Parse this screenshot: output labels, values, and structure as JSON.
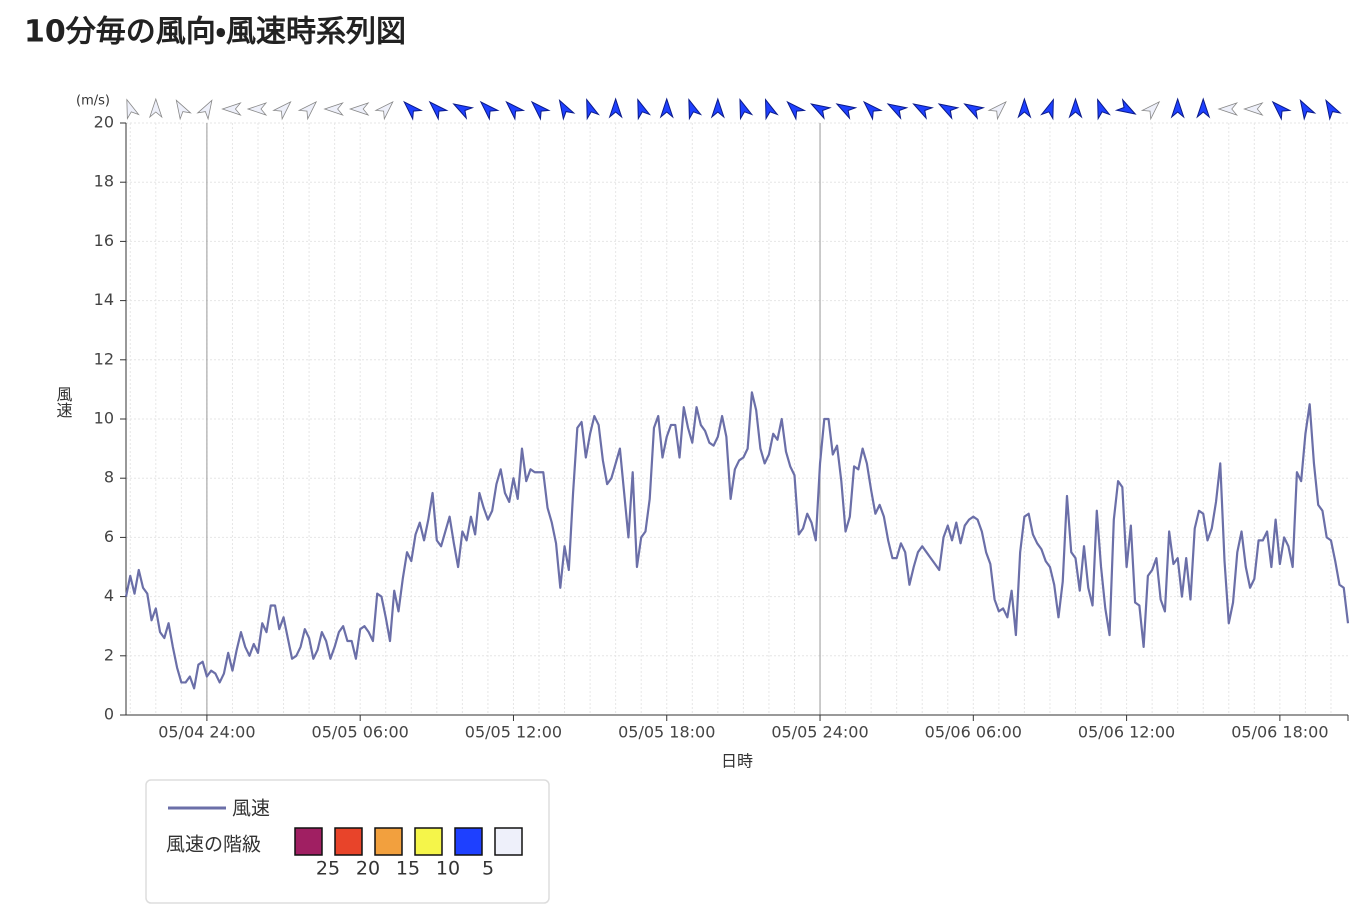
{
  "chart_data": {
    "type": "line",
    "title": "10分毎の風向・風速時系列図",
    "y_label": "風速",
    "y_unit": "(m/s)",
    "x_label": "日時",
    "xlim": [
      0,
      287
    ],
    "xticks": [
      {
        "value": 19,
        "label": "05/04 24:00"
      },
      {
        "value": 55,
        "label": "05/05 06:00"
      },
      {
        "value": 91,
        "label": "05/05 12:00"
      },
      {
        "value": 127,
        "label": "05/05 18:00"
      },
      {
        "value": 163,
        "label": "05/05 24:00"
      },
      {
        "value": 199,
        "label": "05/06 06:00"
      },
      {
        "value": 235,
        "label": "05/06 12:00"
      },
      {
        "value": 271,
        "label": "05/06 18:00"
      }
    ],
    "ylim": [
      0,
      20
    ],
    "yticks": [
      0,
      2,
      4,
      6,
      8,
      10,
      12,
      14,
      16,
      18,
      20
    ],
    "grid": true,
    "series": [
      {
        "name": "風速",
        "color": "#6b6fa8",
        "values": [
          4.0,
          4.7,
          4.1,
          4.9,
          4.3,
          4.1,
          3.2,
          3.6,
          2.8,
          2.6,
          3.1,
          2.3,
          1.6,
          1.1,
          1.1,
          1.3,
          0.9,
          1.7,
          1.8,
          1.3,
          1.5,
          1.4,
          1.1,
          1.4,
          2.1,
          1.5,
          2.2,
          2.8,
          2.3,
          2.0,
          2.4,
          2.1,
          3.1,
          2.8,
          3.7,
          3.7,
          2.9,
          3.3,
          2.6,
          1.9,
          2.0,
          2.3,
          2.9,
          2.6,
          1.9,
          2.2,
          2.8,
          2.5,
          1.9,
          2.3,
          2.8,
          3.0,
          2.5,
          2.5,
          1.9,
          2.9,
          3.0,
          2.8,
          2.5,
          4.1,
          4.0,
          3.3,
          2.5,
          4.2,
          3.5,
          4.6,
          5.5,
          5.2,
          6.1,
          6.5,
          5.9,
          6.6,
          7.5,
          5.9,
          5.7,
          6.2,
          6.7,
          5.8,
          5.0,
          6.2,
          5.9,
          6.7,
          6.1,
          7.5,
          7.0,
          6.6,
          6.9,
          7.8,
          8.3,
          7.5,
          7.2,
          8.0,
          7.3,
          9.0,
          7.9,
          8.3,
          8.2,
          8.2,
          8.2,
          7.0,
          6.5,
          5.8,
          4.3,
          5.7,
          4.9,
          7.5,
          9.7,
          9.9,
          8.7,
          9.5,
          10.1,
          9.8,
          8.6,
          7.8,
          8.0,
          8.5,
          9.0,
          7.5,
          6.0,
          8.2,
          5.0,
          6.0,
          6.2,
          7.3,
          9.7,
          10.1,
          8.7,
          9.4,
          9.8,
          9.8,
          8.7,
          10.4,
          9.7,
          9.2,
          10.4,
          9.8,
          9.6,
          9.2,
          9.1,
          9.4,
          10.1,
          9.4,
          7.3,
          8.3,
          8.6,
          8.7,
          9.0,
          10.9,
          10.3,
          9.0,
          8.5,
          8.8,
          9.5,
          9.3,
          10.0,
          8.9,
          8.4,
          8.1,
          6.1,
          6.3,
          6.8,
          6.5,
          5.9,
          8.5,
          10.0,
          10.0,
          8.8,
          9.1,
          7.9,
          6.2,
          6.7,
          8.4,
          8.3,
          9.0,
          8.5,
          7.6,
          6.8,
          7.1,
          6.7,
          5.9,
          5.3,
          5.3,
          5.8,
          5.5,
          4.4,
          5.0,
          5.5,
          5.7,
          5.5,
          5.3,
          5.1,
          4.9,
          6.0,
          6.4,
          5.9,
          6.5,
          5.8,
          6.4,
          6.6,
          6.7,
          6.6,
          6.2,
          5.5,
          5.1,
          3.9,
          3.5,
          3.6,
          3.3,
          4.2,
          2.7,
          5.5,
          6.7,
          6.8,
          6.1,
          5.8,
          5.6,
          5.2,
          5.0,
          4.4,
          3.3,
          4.5,
          7.4,
          5.5,
          5.3,
          4.2,
          5.7,
          4.3,
          3.7,
          6.9,
          5.0,
          3.6,
          2.7,
          6.6,
          7.9,
          7.7,
          5.0,
          6.4,
          3.8,
          3.7,
          2.3,
          4.7,
          4.9,
          5.3,
          3.9,
          3.5,
          6.2,
          5.1,
          5.3,
          4.0,
          5.3,
          3.9,
          6.3,
          6.9,
          6.8,
          5.9,
          6.3,
          7.2,
          8.5,
          5.2,
          3.1,
          3.8,
          5.5,
          6.2,
          5.0,
          4.3,
          4.6,
          5.9,
          5.9,
          6.2,
          5.0,
          6.6,
          5.1,
          6.0,
          5.7,
          5.0,
          8.2,
          7.9,
          9.5,
          10.5,
          8.5,
          7.1,
          6.9,
          6.0,
          5.9,
          5.2,
          4.4,
          4.3,
          3.1
        ]
      }
    ],
    "wind_direction": [
      340,
      0,
      330,
      30,
      270,
      270,
      45,
      45,
      270,
      270,
      45,
      315,
      315,
      300,
      315,
      315,
      315,
      330,
      340,
      0,
      340,
      0,
      340,
      0,
      340,
      340,
      315,
      300,
      300,
      315,
      300,
      300,
      300,
      300,
      45,
      0,
      20,
      0,
      340,
      120,
      45,
      0,
      0,
      270,
      270,
      315,
      330,
      330
    ],
    "wind_direction_colors": [
      "#eef0fa",
      "#eef0fa",
      "#eef0fa",
      "#eef0fa",
      "#eef0fa",
      "#eef0fa",
      "#eef0fa",
      "#eef0fa",
      "#eef0fa",
      "#eef0fa",
      "#eef0fa",
      "#1e40ff",
      "#1e40ff",
      "#1e40ff",
      "#1e40ff",
      "#1e40ff",
      "#1e40ff",
      "#1e40ff",
      "#1e40ff",
      "#1e40ff",
      "#1e40ff",
      "#1e40ff",
      "#1e40ff",
      "#1e40ff",
      "#1e40ff",
      "#1e40ff",
      "#1e40ff",
      "#1e40ff",
      "#1e40ff",
      "#1e40ff",
      "#1e40ff",
      "#1e40ff",
      "#1e40ff",
      "#1e40ff",
      "#eef0fa",
      "#1e40ff",
      "#1e40ff",
      "#1e40ff",
      "#1e40ff",
      "#1e40ff",
      "#eef0fa",
      "#1e40ff",
      "#1e40ff",
      "#eef0fa",
      "#eef0fa",
      "#1e40ff",
      "#1e40ff",
      "#1e40ff"
    ],
    "legend_scale": {
      "title": "風速の階級",
      "colors": [
        "#a01f62",
        "#e8442a",
        "#f2a03e",
        "#f5f54a",
        "#1e40ff",
        "#eef0fa"
      ],
      "labels": [
        25,
        20,
        15,
        10,
        5
      ]
    }
  }
}
